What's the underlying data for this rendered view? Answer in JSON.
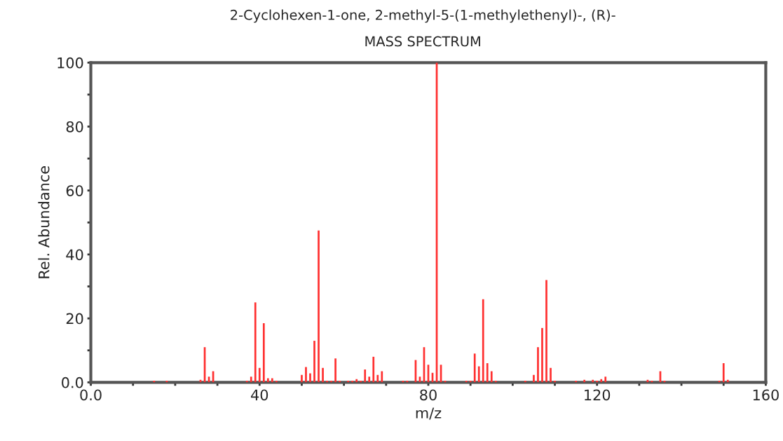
{
  "chart_data": {
    "type": "bar",
    "title": "2-Cyclohexen-1-one, 2-methyl-5-(1-methylethenyl)-, (R)-",
    "subtitle": "MASS SPECTRUM",
    "xlabel": "m/z",
    "ylabel": "Rel. Abundance",
    "x": [
      15,
      18,
      26,
      27,
      28,
      29,
      37,
      38,
      39,
      40,
      41,
      42,
      43,
      44,
      50,
      51,
      52,
      53,
      54,
      55,
      56,
      57,
      58,
      59,
      61,
      62,
      63,
      64,
      65,
      66,
      67,
      68,
      69,
      74,
      75,
      77,
      78,
      79,
      80,
      81,
      82,
      83,
      84,
      89,
      90,
      91,
      92,
      93,
      94,
      95,
      96,
      103,
      105,
      106,
      107,
      108,
      109,
      110,
      115,
      117,
      119,
      120,
      121,
      122,
      132,
      133,
      135,
      136,
      149,
      150,
      151
    ],
    "values": [
      0.5,
      0.5,
      0.8,
      11,
      1.8,
      3.5,
      0.5,
      1.8,
      25,
      4.5,
      18.5,
      1.3,
      1.3,
      0.5,
      2.3,
      4.8,
      2.8,
      13,
      47.5,
      4.5,
      0.5,
      0.5,
      7.5,
      0.5,
      0.5,
      0.5,
      1,
      0.5,
      4,
      1.8,
      8,
      2.3,
      3.5,
      0.5,
      0.5,
      7,
      1.8,
      11,
      5.5,
      3,
      100,
      5.5,
      0.5,
      0.5,
      0.5,
      9,
      5,
      26,
      6,
      3.5,
      0.5,
      0.5,
      2.3,
      11,
      17,
      32,
      4.5,
      0.5,
      0.5,
      0.8,
      0.8,
      0.5,
      1,
      1.8,
      0.8,
      0.5,
      3.5,
      0.5,
      0.5,
      6,
      0.8
    ],
    "color": "#ff3030",
    "xlim": [
      0,
      160
    ],
    "xticks": [
      {
        "value": 0,
        "label": "0.0"
      },
      {
        "value": 10,
        "label": null
      },
      {
        "value": 20,
        "label": null
      },
      {
        "value": 30,
        "label": null
      },
      40,
      {
        "value": 50,
        "label": null
      },
      {
        "value": 60,
        "label": null
      },
      {
        "value": 70,
        "label": null
      },
      80,
      {
        "value": 90,
        "label": null
      },
      {
        "value": 100,
        "label": null
      },
      {
        "value": 110,
        "label": null
      },
      120,
      {
        "value": 130,
        "label": null
      },
      {
        "value": 140,
        "label": null
      },
      {
        "value": 150,
        "label": null
      },
      160
    ],
    "ylim": [
      0,
      100
    ],
    "yticks": [
      {
        "value": 0,
        "label": "0.0"
      },
      {
        "value": 10,
        "label": null
      },
      20,
      {
        "value": 30,
        "label": null
      },
      40,
      {
        "value": 50,
        "label": null
      },
      60,
      {
        "value": 70,
        "label": null
      },
      80,
      {
        "value": 90,
        "label": null
      },
      100
    ],
    "grid": false,
    "legend": false
  }
}
